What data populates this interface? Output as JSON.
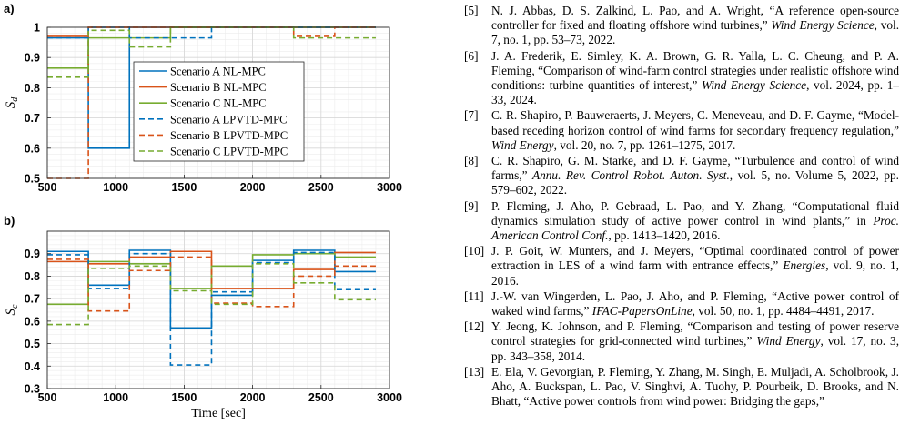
{
  "figure": {
    "panels": [
      {
        "label": "a)",
        "ylabel": "S",
        "ylabel_sub": "d"
      },
      {
        "label": "b)",
        "ylabel": "S",
        "ylabel_sub": "c",
        "xlabel": "Time [sec]"
      }
    ]
  },
  "chart_data": [
    {
      "type": "line",
      "title": "",
      "panel_label": "a)",
      "ylabel": "S_d",
      "xlabel": "",
      "xlim": [
        500,
        3000
      ],
      "ylim": [
        0.5,
        1.0
      ],
      "xticks": [
        500,
        1000,
        1500,
        2000,
        2500,
        3000
      ],
      "yticks": [
        0.5,
        0.6,
        0.7,
        0.8,
        0.9,
        1
      ],
      "grid": true,
      "legend": "center",
      "step": true,
      "series": [
        {
          "name": "Scenario A NL-MPC",
          "color": "#0072BD",
          "dash": "solid",
          "x": [
            500,
            800,
            1100,
            2900
          ],
          "y": [
            0.965,
            0.6,
            1.0,
            1.0
          ]
        },
        {
          "name": "Scenario B NL-MPC",
          "color": "#D95319",
          "dash": "solid",
          "x": [
            500,
            800,
            2900
          ],
          "y": [
            0.97,
            1.0,
            1.0
          ]
        },
        {
          "name": "Scenario C NL-MPC",
          "color": "#77AC30",
          "dash": "solid",
          "x": [
            500,
            800,
            1400,
            2900
          ],
          "y": [
            0.865,
            0.965,
            1.0,
            1.0
          ]
        },
        {
          "name": "Scenario A LPVTD-MPC",
          "color": "#0072BD",
          "dash": "dashed",
          "x": [
            500,
            800,
            1100,
            1400,
            1700,
            2900
          ],
          "y": [
            0.965,
            1.0,
            0.965,
            0.965,
            1.0,
            1.0
          ]
        },
        {
          "name": "Scenario B LPVTD-MPC",
          "color": "#D95319",
          "dash": "dashed",
          "x": [
            500,
            800,
            2300,
            2600,
            2900
          ],
          "y": [
            0.5,
            1.0,
            0.97,
            1.0,
            1.0
          ]
        },
        {
          "name": "Scenario C LPVTD-MPC",
          "color": "#77AC30",
          "dash": "dashed",
          "x": [
            500,
            800,
            1100,
            1400,
            2300,
            2600,
            2900
          ],
          "y": [
            0.835,
            0.99,
            0.935,
            1.0,
            0.965,
            0.965,
            0.965
          ]
        }
      ]
    },
    {
      "type": "line",
      "title": "",
      "panel_label": "b)",
      "ylabel": "S_c",
      "xlabel": "Time [sec]",
      "xlim": [
        500,
        3000
      ],
      "ylim": [
        0.3,
        1.0
      ],
      "xticks": [
        500,
        1000,
        1500,
        2000,
        2500,
        3000
      ],
      "yticks": [
        0.3,
        0.4,
        0.5,
        0.6,
        0.7,
        0.8,
        0.9
      ],
      "grid": true,
      "step": true,
      "series": [
        {
          "name": "Scenario A NL-MPC",
          "color": "#0072BD",
          "dash": "solid",
          "x": [
            500,
            800,
            1100,
            1400,
            1700,
            2000,
            2300,
            2600,
            2900
          ],
          "y": [
            0.91,
            0.76,
            0.915,
            0.57,
            0.715,
            0.87,
            0.915,
            0.82,
            0.82
          ]
        },
        {
          "name": "Scenario B NL-MPC",
          "color": "#D95319",
          "dash": "solid",
          "x": [
            500,
            800,
            1100,
            1400,
            1700,
            2000,
            2300,
            2600,
            2900
          ],
          "y": [
            0.865,
            0.855,
            0.885,
            0.91,
            0.745,
            0.745,
            0.83,
            0.905,
            0.905
          ]
        },
        {
          "name": "Scenario C NL-MPC",
          "color": "#77AC30",
          "dash": "solid",
          "x": [
            500,
            800,
            1100,
            1400,
            1700,
            2000,
            2300,
            2600,
            2900
          ],
          "y": [
            0.675,
            0.865,
            0.855,
            0.745,
            0.845,
            0.895,
            0.9,
            0.885,
            0.885
          ]
        },
        {
          "name": "Scenario A LPVTD-MPC",
          "color": "#0072BD",
          "dash": "dashed",
          "x": [
            500,
            800,
            1100,
            1400,
            1700,
            2000,
            2300,
            2600,
            2900
          ],
          "y": [
            0.895,
            0.745,
            0.9,
            0.405,
            0.73,
            0.86,
            0.905,
            0.74,
            0.74
          ]
        },
        {
          "name": "Scenario B LPVTD-MPC",
          "color": "#D95319",
          "dash": "dashed",
          "x": [
            500,
            800,
            1100,
            1400,
            1700,
            2000,
            2300,
            2600,
            2900
          ],
          "y": [
            0.875,
            0.645,
            0.825,
            0.885,
            0.68,
            0.665,
            0.8,
            0.845,
            0.845
          ]
        },
        {
          "name": "Scenario C LPVTD-MPC",
          "color": "#77AC30",
          "dash": "dashed",
          "x": [
            500,
            800,
            1100,
            1400,
            1700,
            2000,
            2300,
            2600,
            2900
          ],
          "y": [
            0.585,
            0.835,
            0.845,
            0.735,
            0.675,
            0.855,
            0.77,
            0.695,
            0.695
          ]
        }
      ]
    }
  ],
  "references": [
    {
      "num": "[5]",
      "authors": "N. J. Abbas, D. S. Zalkind, L. Pao, and A. Wright, “A reference open-source controller for fixed and floating offshore wind turbines,” ",
      "venue": "Wind Energy Science",
      "rest": ", vol. 7, no. 1, pp. 53–73, 2022."
    },
    {
      "num": "[6]",
      "authors": "J. A. Frederik, E. Simley, K. A. Brown, G. R. Yalla, L. C. Cheung, and P. A. Fleming, “Comparison of wind-farm control strategies under realistic offshore wind conditions: turbine quantities of interest,” ",
      "venue": "Wind Energy Science",
      "rest": ", vol. 2024, pp. 1–33, 2024."
    },
    {
      "num": "[7]",
      "authors": "C. R. Shapiro, P. Bauweraerts, J. Meyers, C. Meneveau, and D. F. Gayme, “Model-based receding horizon control of wind farms for secondary frequency regulation,” ",
      "venue": "Wind Energy",
      "rest": ", vol. 20, no. 7, pp. 1261–1275, 2017."
    },
    {
      "num": "[8]",
      "authors": "C. R. Shapiro, G. M. Starke, and D. F. Gayme, “Turbulence and control of wind farms,” ",
      "venue": "Annu. Rev. Control Robot. Auton. Syst.",
      "rest": ", vol. 5, no. Volume 5, 2022, pp. 579–602, 2022."
    },
    {
      "num": "[9]",
      "authors": "P. Fleming, J. Aho, P. Gebraad, L. Pao, and Y. Zhang, “Computational fluid dynamics simulation study of active power control in wind plants,” in ",
      "venue": "Proc. American Control Conf.",
      "rest": ", pp. 1413–1420, 2016."
    },
    {
      "num": "[10]",
      "authors": "J. P. Goit, W. Munters, and J. Meyers, “Optimal coordinated control of power extraction in LES of a wind farm with entrance effects,” ",
      "venue": "Energies",
      "rest": ", vol. 9, no. 1, 2016."
    },
    {
      "num": "[11]",
      "authors": "J.-W. van Wingerden, L. Pao, J. Aho, and P. Fleming, “Active power control of waked wind farms,” ",
      "venue": "IFAC-PapersOnLine",
      "rest": ", vol. 50, no. 1, pp. 4484–4491, 2017."
    },
    {
      "num": "[12]",
      "authors": "Y. Jeong, K. Johnson, and P. Fleming, “Comparison and testing of power reserve control strategies for grid-connected wind turbines,” ",
      "venue": "Wind Energy",
      "rest": ", vol. 17, no. 3, pp. 343–358, 2014."
    },
    {
      "num": "[13]",
      "authors": "E. Ela, V. Gevorgian, P. Fleming, Y. Zhang, M. Singh, E. Muljadi, A. Scholbrook, J. Aho, A. Buckspan, L. Pao, V. Singhvi, A. Tuohy, P. Pourbeik, D. Brooks, and N. Bhatt, “Active power controls from wind power: Bridging the gaps,” ",
      "venue": "",
      "rest": ""
    }
  ]
}
